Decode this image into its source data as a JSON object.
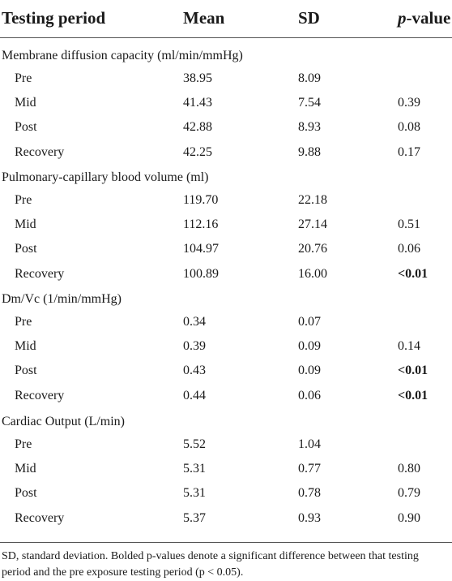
{
  "table": {
    "headers": [
      "Testing period",
      "Mean",
      "SD",
      "p-value"
    ],
    "header_p_italic": "p",
    "header_p_rest": "-value",
    "sections": [
      {
        "title": "Membrane diffusion capacity (ml/min/mmHg)",
        "rows": [
          {
            "period": "Pre",
            "mean": "38.95",
            "sd": "8.09",
            "p": "",
            "p_bold": false
          },
          {
            "period": "Mid",
            "mean": "41.43",
            "sd": "7.54",
            "p": "0.39",
            "p_bold": false
          },
          {
            "period": "Post",
            "mean": "42.88",
            "sd": "8.93",
            "p": "0.08",
            "p_bold": false
          },
          {
            "period": "Recovery",
            "mean": "42.25",
            "sd": "9.88",
            "p": "0.17",
            "p_bold": false
          }
        ]
      },
      {
        "title": "Pulmonary-capillary blood volume (ml)",
        "rows": [
          {
            "period": "Pre",
            "mean": "119.70",
            "sd": "22.18",
            "p": "",
            "p_bold": false
          },
          {
            "period": "Mid",
            "mean": "112.16",
            "sd": "27.14",
            "p": "0.51",
            "p_bold": false
          },
          {
            "period": "Post",
            "mean": "104.97",
            "sd": "20.76",
            "p": "0.06",
            "p_bold": false
          },
          {
            "period": "Recovery",
            "mean": "100.89",
            "sd": "16.00",
            "p": "<0.01",
            "p_bold": true
          }
        ]
      },
      {
        "title": "Dm/Vc (1/min/mmHg)",
        "rows": [
          {
            "period": "Pre",
            "mean": "0.34",
            "sd": "0.07",
            "p": "",
            "p_bold": false
          },
          {
            "period": "Mid",
            "mean": "0.39",
            "sd": "0.09",
            "p": "0.14",
            "p_bold": false
          },
          {
            "period": "Post",
            "mean": "0.43",
            "sd": "0.09",
            "p": "<0.01",
            "p_bold": true
          },
          {
            "period": "Recovery",
            "mean": "0.44",
            "sd": "0.06",
            "p": "<0.01",
            "p_bold": true
          }
        ]
      },
      {
        "title": "Cardiac Output (L/min)",
        "rows": [
          {
            "period": "Pre",
            "mean": "5.52",
            "sd": "1.04",
            "p": "",
            "p_bold": false
          },
          {
            "period": "Mid",
            "mean": "5.31",
            "sd": "0.77",
            "p": "0.80",
            "p_bold": false
          },
          {
            "period": "Post",
            "mean": "5.31",
            "sd": "0.78",
            "p": "0.79",
            "p_bold": false
          },
          {
            "period": "Recovery",
            "mean": "5.37",
            "sd": "0.93",
            "p": "0.90",
            "p_bold": false
          }
        ]
      }
    ],
    "footnote": "SD, standard deviation. Bolded p-values denote a significant difference between that testing period and the pre exposure testing period (p < 0.05)."
  }
}
